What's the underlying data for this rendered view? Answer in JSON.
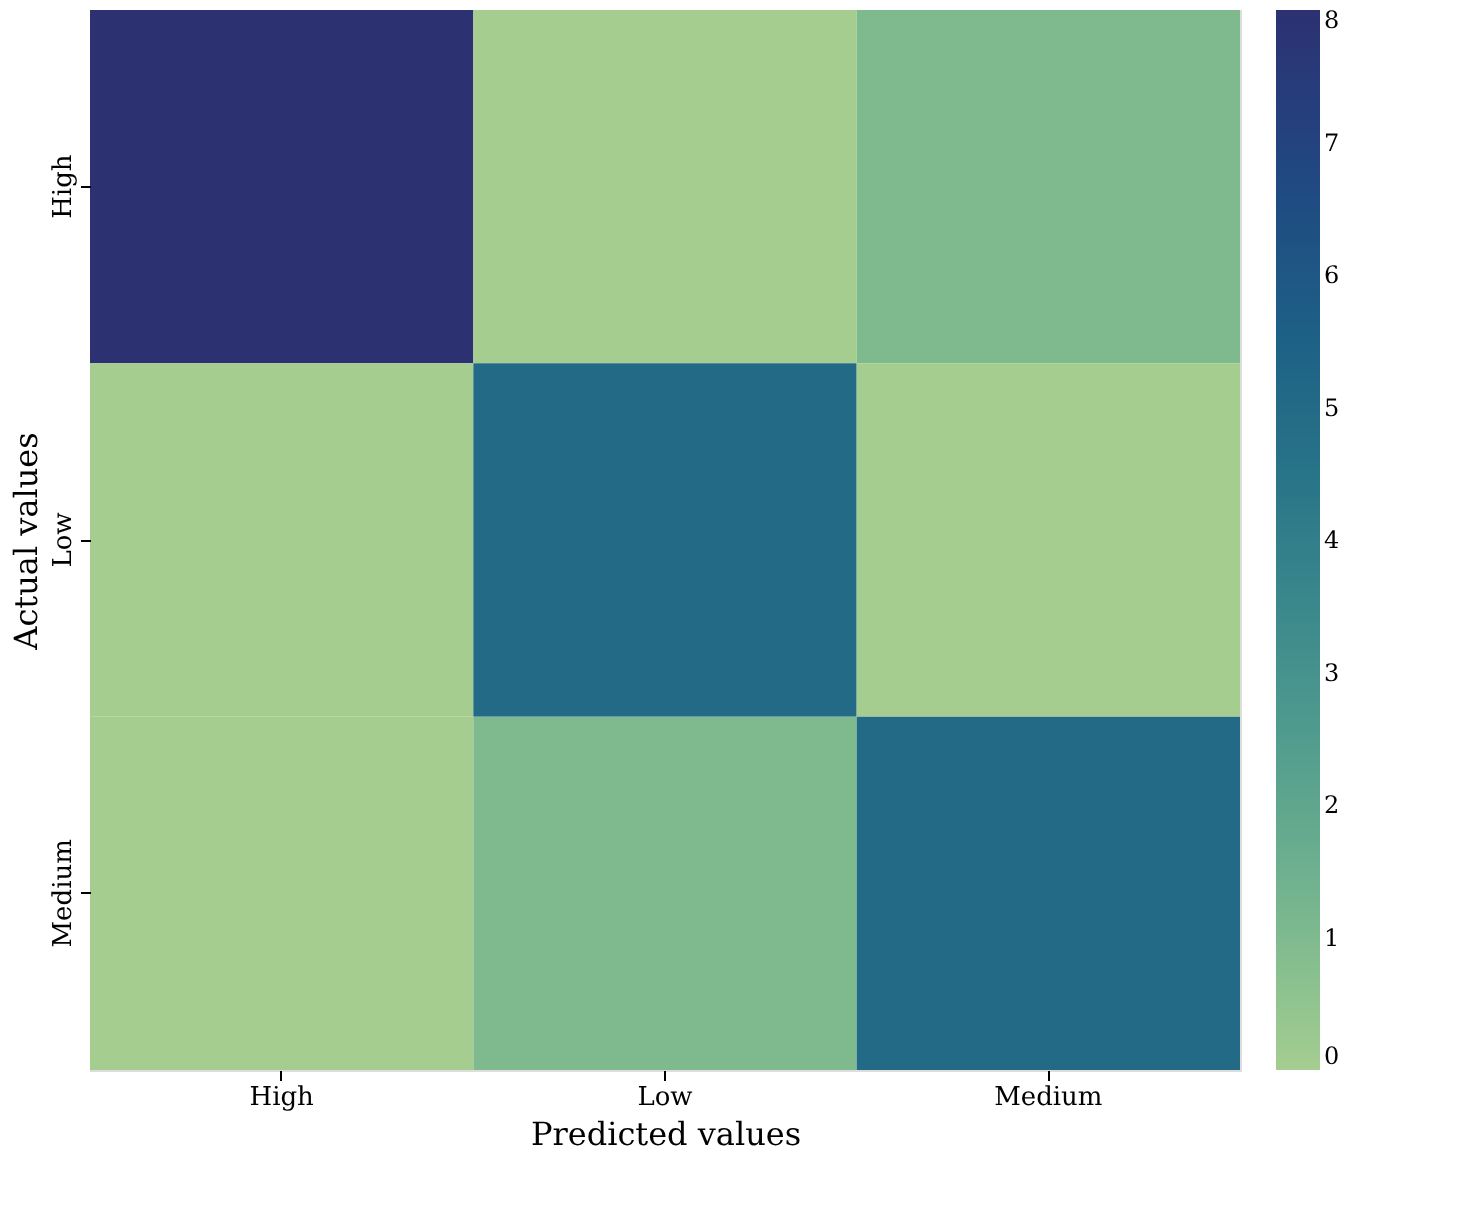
{
  "chart_data": {
    "type": "heatmap",
    "xlabel": "Predicted values",
    "ylabel": "Actual values",
    "categories": [
      "High",
      "Low",
      "Medium"
    ],
    "y_categories": [
      "High",
      "Low",
      "Medium"
    ],
    "cells": [
      [
        8,
        0,
        1
      ],
      [
        0,
        5,
        0
      ],
      [
        0,
        1,
        5
      ]
    ],
    "clim": [
      0,
      8
    ],
    "cticks": [
      0,
      1,
      2,
      3,
      4,
      5,
      6,
      7,
      8
    ]
  }
}
